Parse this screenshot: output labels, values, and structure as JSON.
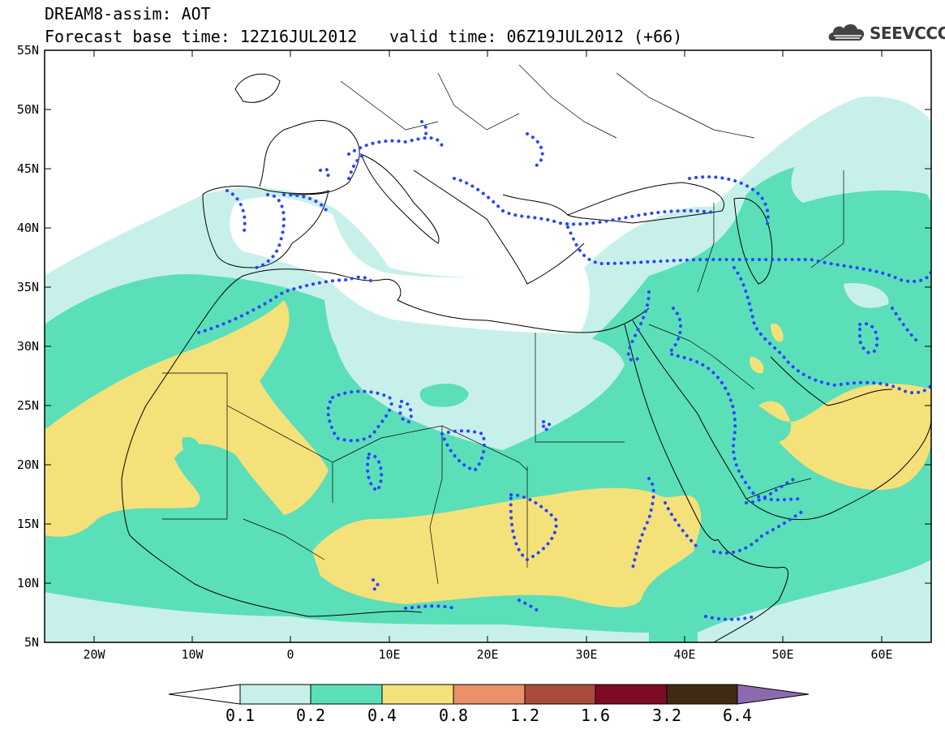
{
  "header": {
    "title": "DREAM8-assim: AOT",
    "base_time": "Forecast base time: 12Z16JUL2012",
    "valid_time": "valid time: 06Z19JUL2012 (+66)",
    "logo_text": "SEEVCCC",
    "logo_icon": "cloud-icon"
  },
  "map": {
    "lat_labels": [
      "55N",
      "50N",
      "45N",
      "40N",
      "35N",
      "30N",
      "25N",
      "20N",
      "15N",
      "10N",
      "5N"
    ],
    "lon_labels": [
      "20W",
      "10W",
      "0",
      "10E",
      "20E",
      "30E",
      "40E",
      "50E",
      "60E"
    ],
    "lat_range": [
      5,
      55
    ],
    "lon_range": [
      -25,
      65
    ]
  },
  "legend": {
    "levels": [
      "0.1",
      "0.2",
      "0.4",
      "0.8",
      "1.2",
      "1.6",
      "3.2",
      "6.4"
    ],
    "colors": {
      "below": "#ffffff",
      "c1": "#c8f0ea",
      "c2": "#5bdfb9",
      "c3": "#f5e17a",
      "c4": "#eb9068",
      "c5": "#aa4b3d",
      "c6": "#7e0b24",
      "c7": "#3f2a13",
      "above": "#8d6ab0"
    }
  },
  "colors": {
    "contour": "#2a44ff",
    "border": "#000000"
  }
}
